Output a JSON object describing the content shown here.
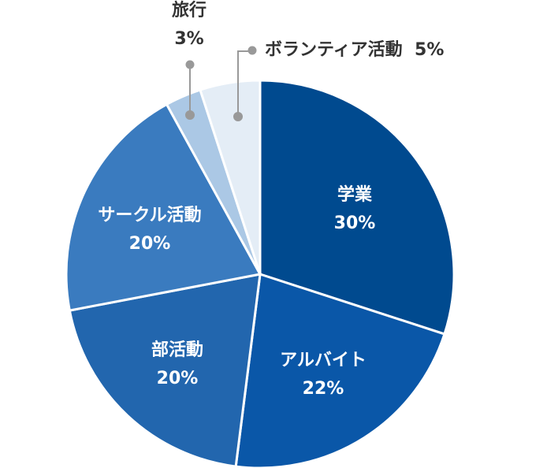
{
  "chart_data": {
    "type": "pie",
    "title": "",
    "start": "top",
    "direction": "clockwise",
    "slices": [
      {
        "label": "学業",
        "value": 30,
        "display": "30%",
        "color": "#004a8f"
      },
      {
        "label": "アルバイト",
        "value": 22,
        "display": "22%",
        "color": "#0a57a8"
      },
      {
        "label": "部活動",
        "value": 20,
        "display": "20%",
        "color": "#2266ae"
      },
      {
        "label": "サークル活動",
        "value": 20,
        "display": "20%",
        "color": "#3a7bbf"
      },
      {
        "label": "旅行",
        "value": 3,
        "display": "3%",
        "color": "#abc8e5"
      },
      {
        "label": "ボランティア活動",
        "value": 5,
        "display": "5%",
        "color": "#e4edf6"
      }
    ],
    "leader_color": "#999999"
  }
}
